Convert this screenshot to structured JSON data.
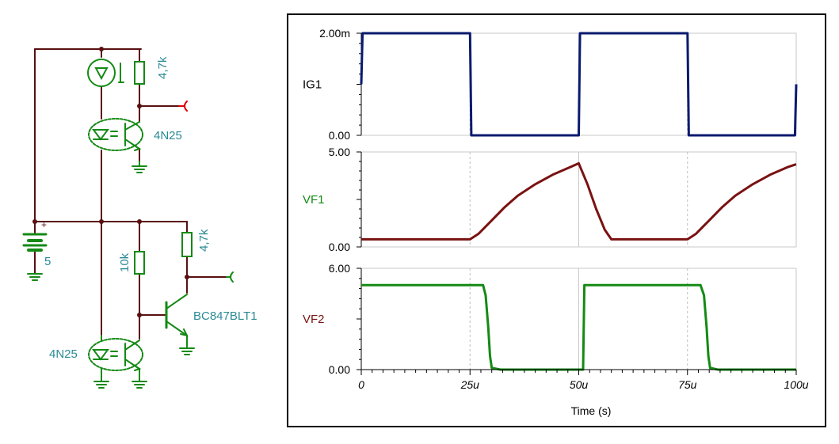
{
  "schematic": {
    "labels": {
      "r_top": "4,7k",
      "optocoupler_top": "4N25",
      "battery": "5",
      "r_base": "10k",
      "r_collector": "4,7k",
      "transistor": "BC847BLT1",
      "optocoupler_bottom": "4N25",
      "battery_plus": "+"
    }
  },
  "chart_data": {
    "type": "line",
    "xlabel": "Time (s)",
    "x_ticks": [
      "0",
      "25u",
      "50u",
      "75u",
      "100u"
    ],
    "x_range_us": [
      0,
      100
    ],
    "grid": true,
    "colors": {
      "IG1": "#0a1a6e",
      "VF1": "#7a1212",
      "VF2": "#148a14"
    },
    "series": [
      {
        "name": "IG1",
        "label_color": "#000000",
        "ylim": [
          0,
          2.0
        ],
        "y_ticks": [
          "2.00m",
          "0.00"
        ],
        "x": [
          0,
          0.3,
          25,
          25.3,
          50,
          50.3,
          75,
          75.3,
          99.7,
          100
        ],
        "y": [
          1.0,
          2.0,
          2.0,
          0.0,
          0.0,
          2.0,
          2.0,
          0.0,
          0.0,
          1.0
        ]
      },
      {
        "name": "VF1",
        "label_color": "#148a14",
        "ylim": [
          0,
          5.0
        ],
        "y_ticks": [
          "5.00",
          "0.00"
        ],
        "x": [
          0,
          25,
          27,
          30,
          33,
          36,
          40,
          44,
          48,
          50,
          52,
          54,
          56,
          57.5,
          75,
          77,
          80,
          83,
          86,
          90,
          94,
          98,
          100
        ],
        "y": [
          0.4,
          0.4,
          0.7,
          1.4,
          2.1,
          2.7,
          3.3,
          3.8,
          4.2,
          4.4,
          3.3,
          2.0,
          0.9,
          0.4,
          0.4,
          0.7,
          1.4,
          2.1,
          2.7,
          3.3,
          3.8,
          4.2,
          4.35
        ]
      },
      {
        "name": "VF2",
        "label_color": "#7a1212",
        "ylim": [
          0,
          6.0
        ],
        "y_ticks": [
          "6.00",
          "0.00"
        ],
        "x": [
          0,
          28,
          28.6,
          29.2,
          29.6,
          30,
          32,
          51,
          51.3,
          51.6,
          78,
          78.8,
          79.4,
          79.8,
          80.2,
          82,
          100
        ],
        "y": [
          5.0,
          5.0,
          4.4,
          2.5,
          0.8,
          0.1,
          0.0,
          0.0,
          5.0,
          5.0,
          5.0,
          4.4,
          2.5,
          0.8,
          0.1,
          0.0,
          0.0
        ]
      }
    ]
  }
}
